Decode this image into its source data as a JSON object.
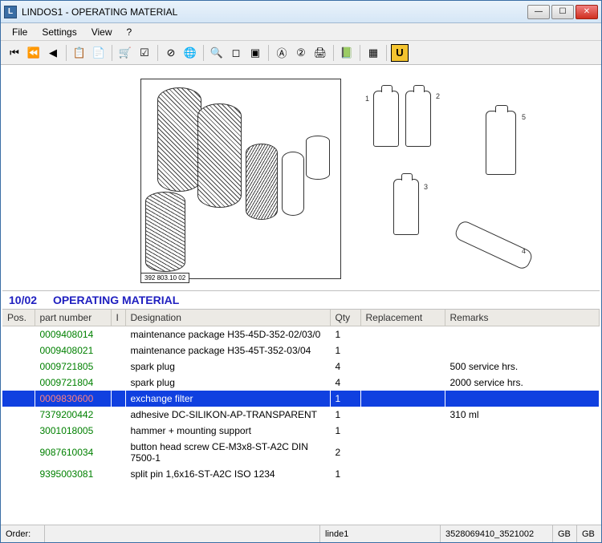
{
  "window": {
    "title": "LINDOS1 - OPERATING MATERIAL"
  },
  "menu": {
    "items": [
      "File",
      "Settings",
      "View",
      "?"
    ]
  },
  "toolbar": {
    "groups": [
      [
        "⏮",
        "⏪",
        "◀"
      ],
      [
        "📋",
        "📄"
      ],
      [
        "🛒",
        "☑"
      ],
      [
        "⊘",
        "🌐"
      ],
      [
        "🔍",
        "◻",
        "▣"
      ],
      [
        "Ⓐ",
        "②",
        "🖨"
      ],
      [
        "📗"
      ],
      [
        "▦"
      ]
    ],
    "u_button": "U"
  },
  "diagram": {
    "part_code": "392 803.10 02",
    "labels": [
      "1",
      "2",
      "3",
      "4",
      "5"
    ]
  },
  "section": {
    "code": "10/02",
    "title": "OPERATING MATERIAL"
  },
  "columns": {
    "pos": "Pos.",
    "part": "part number",
    "i": "I",
    "desig": "Designation",
    "qty": "Qty",
    "repl": "Replacement",
    "rem": "Remarks"
  },
  "rows": [
    {
      "pos": "",
      "part": "0009408014",
      "i": "",
      "desig": "maintenance package H35-45D-352-02/03/0",
      "qty": "1",
      "repl": "",
      "rem": "",
      "selected": false
    },
    {
      "pos": "",
      "part": "0009408021",
      "i": "",
      "desig": "maintenance package H35-45T-352-03/04",
      "qty": "1",
      "repl": "",
      "rem": "",
      "selected": false
    },
    {
      "pos": "",
      "part": "0009721805",
      "i": "",
      "desig": "spark plug",
      "qty": "4",
      "repl": "",
      "rem": "500 service hrs.",
      "selected": false
    },
    {
      "pos": "",
      "part": "0009721804",
      "i": "",
      "desig": "spark plug",
      "qty": "4",
      "repl": "",
      "rem": "2000 service  hrs.",
      "selected": false
    },
    {
      "pos": "",
      "part": "0009830600",
      "i": "",
      "desig": "exchange filter",
      "qty": "1",
      "repl": "",
      "rem": "",
      "selected": true
    },
    {
      "pos": "",
      "part": "7379200442",
      "i": "",
      "desig": "adhesive DC-SILIKON-AP-TRANSPARENT",
      "qty": "1",
      "repl": "",
      "rem": "310 ml",
      "selected": false
    },
    {
      "pos": "",
      "part": "3001018005",
      "i": "",
      "desig": "hammer + mounting support",
      "qty": "1",
      "repl": "",
      "rem": "",
      "selected": false
    },
    {
      "pos": "",
      "part": "9087610034",
      "i": "",
      "desig": "button head screw CE-M3x8-ST-A2C  DIN 7500-1",
      "qty": "2",
      "repl": "",
      "rem": "",
      "selected": false
    },
    {
      "pos": "",
      "part": "9395003081",
      "i": "",
      "desig": "split pin 1,6x16-ST-A2C  ISO 1234",
      "qty": "1",
      "repl": "",
      "rem": "",
      "selected": false
    }
  ],
  "status": {
    "order_label": "Order:",
    "order_value": "",
    "user": "linde1",
    "doc": "3528069410_3521002",
    "lang1": "GB",
    "lang2": "GB"
  }
}
